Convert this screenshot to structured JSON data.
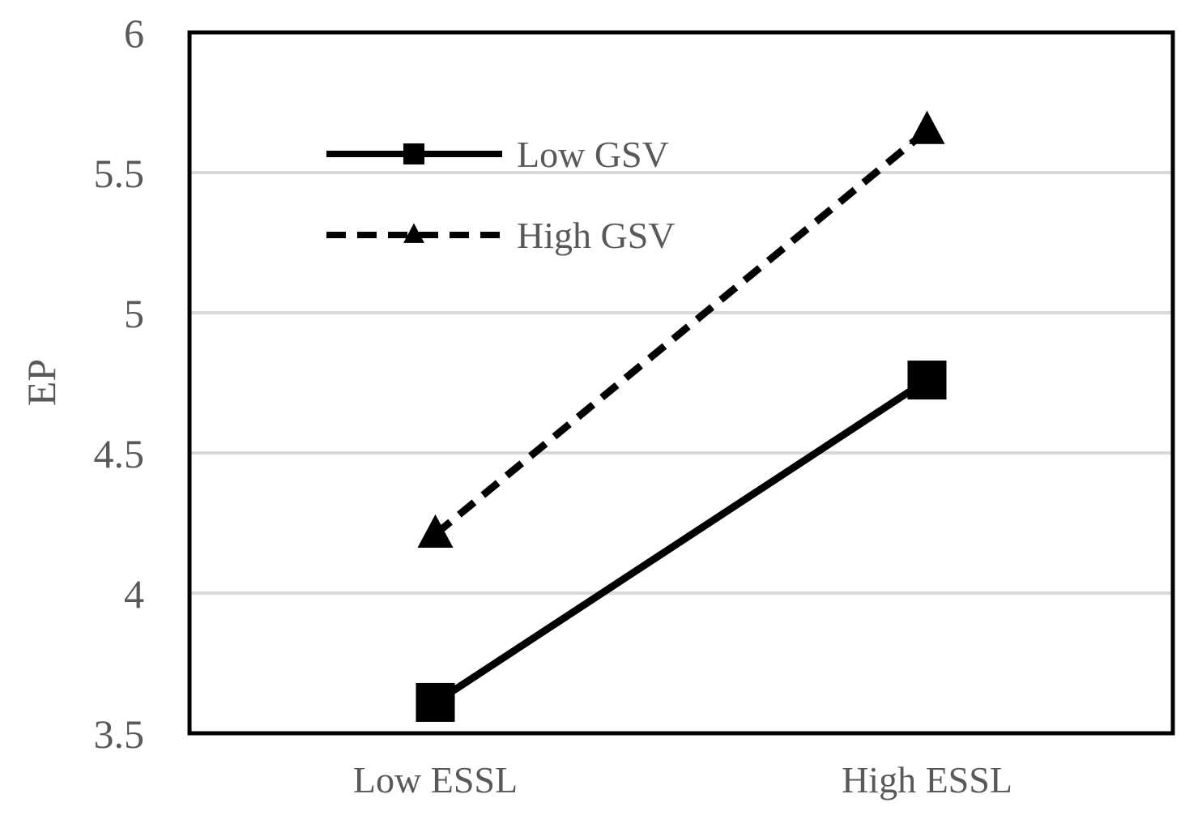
{
  "chart_data": {
    "type": "line",
    "title": "",
    "xlabel": "",
    "ylabel": "EP",
    "categories": [
      "Low ESSL",
      "High ESSL"
    ],
    "ylim": [
      3.5,
      6
    ],
    "yticks": [
      "3.5",
      "4",
      "4.5",
      "5",
      "5.5",
      "6"
    ],
    "grid": true,
    "legend_position": "top-left",
    "series": [
      {
        "name": "Low GSV",
        "values": [
          3.61,
          4.76
        ],
        "style": "solid",
        "marker": "square",
        "color": "#000000"
      },
      {
        "name": "High GSV",
        "values": [
          4.21,
          5.65
        ],
        "style": "dashed",
        "marker": "triangle",
        "color": "#000000"
      }
    ],
    "gridline_color": "#d9d9d9",
    "label_color": "#595959"
  }
}
